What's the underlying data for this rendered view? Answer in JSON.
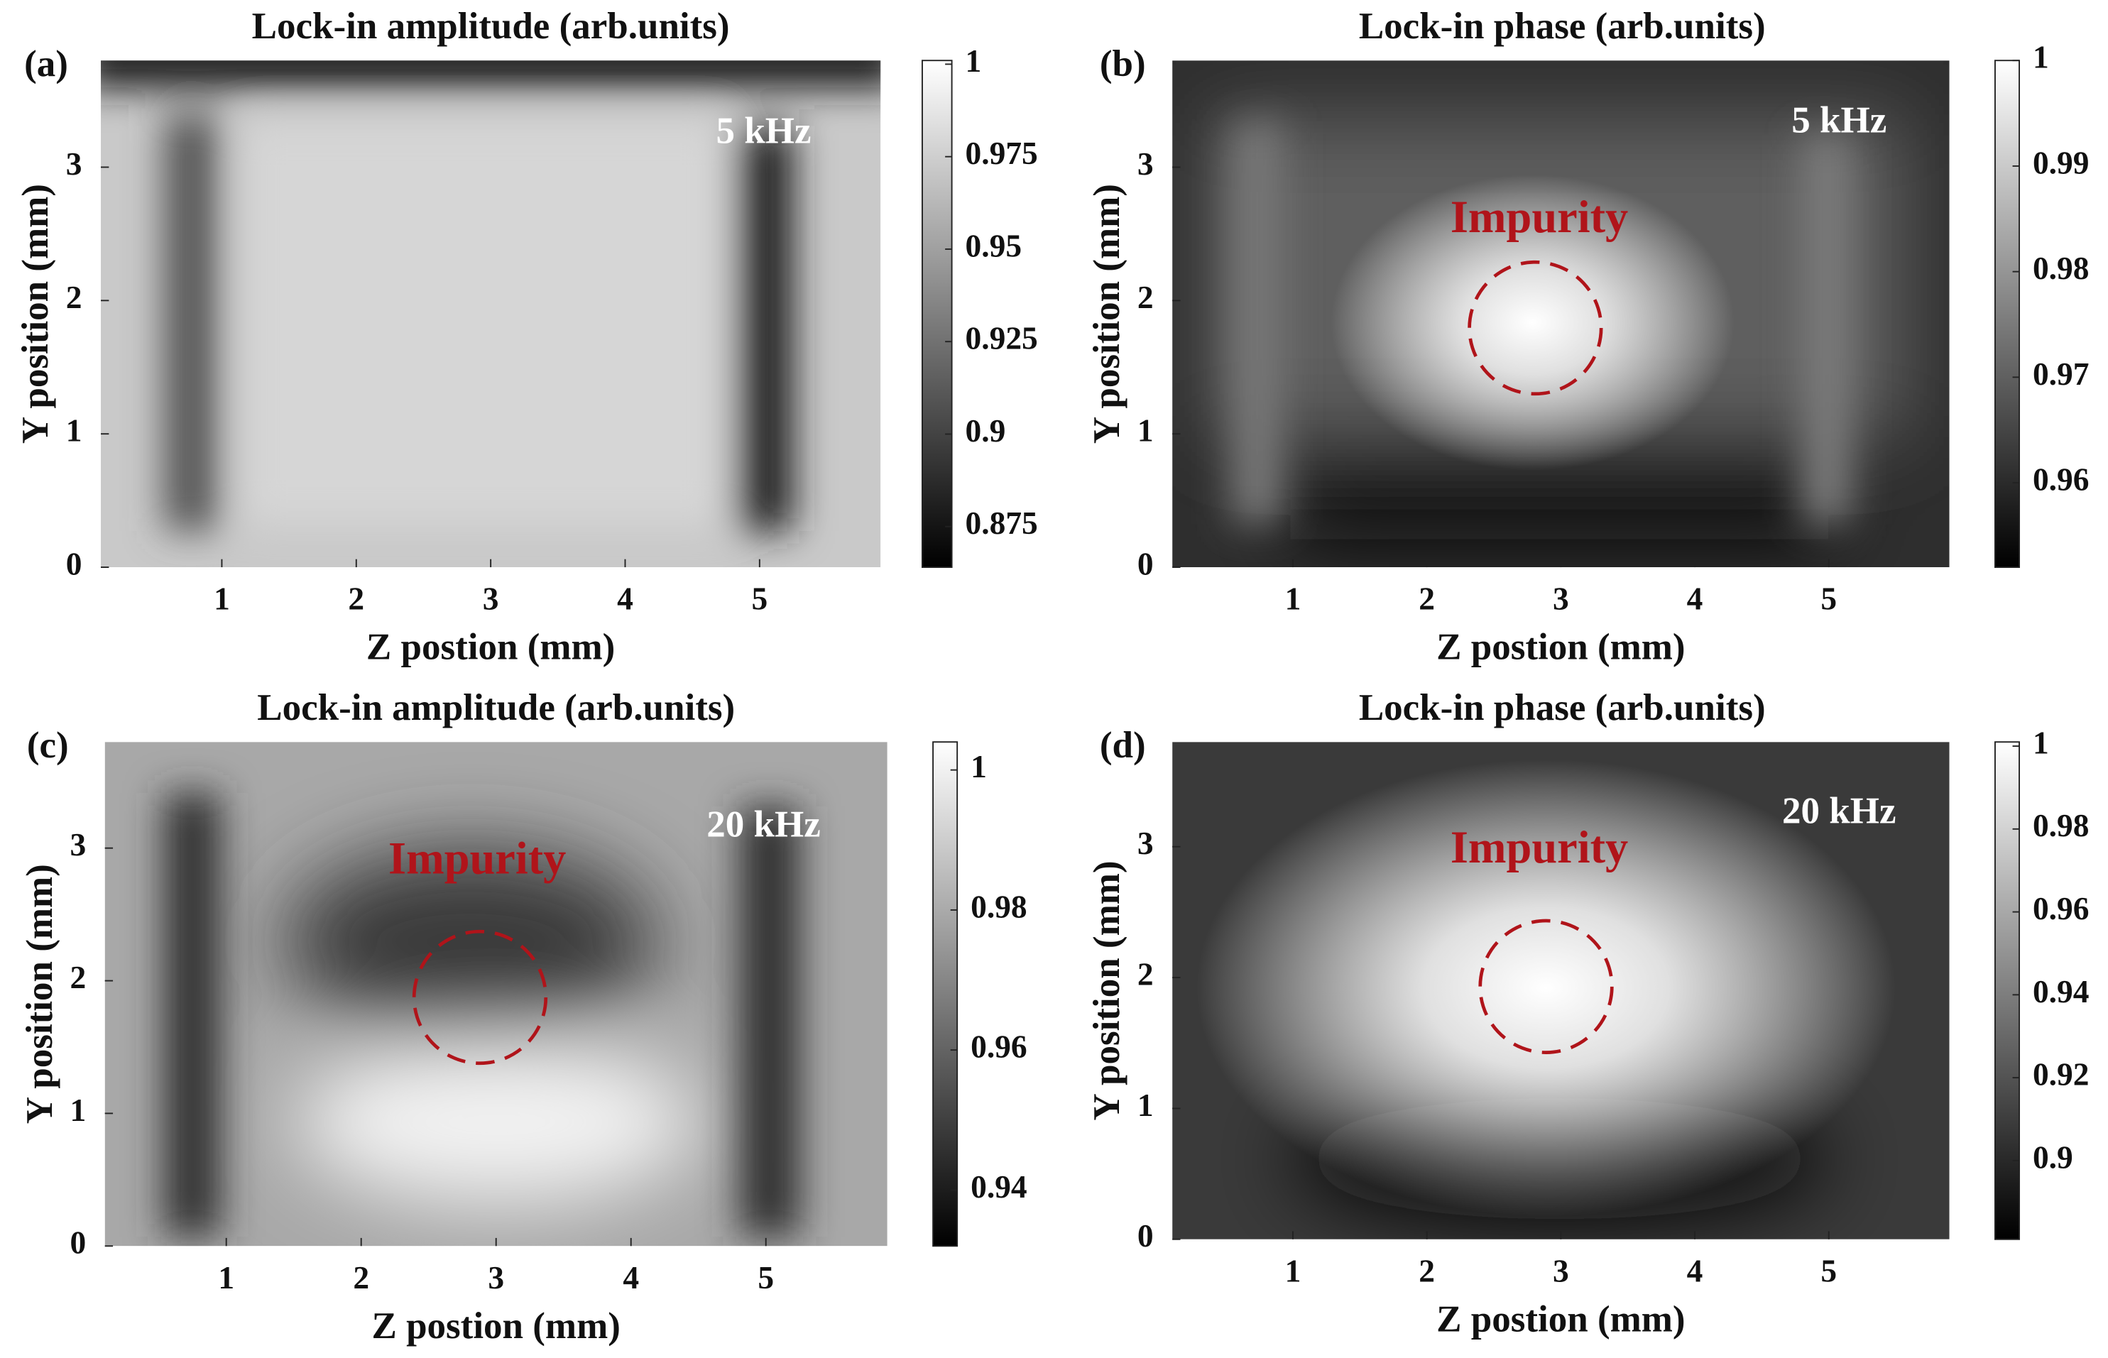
{
  "chart_data": [
    {
      "type": "heatmap",
      "panel_label": "(a)",
      "title": "Lock-in amplitude (arb.units)",
      "xlabel": "Z postion (mm)",
      "ylabel": "Y position (mm)",
      "xlim": [
        0.1,
        5.9
      ],
      "ylim": [
        0,
        3.8
      ],
      "xticks": [
        1,
        2,
        3,
        4,
        5
      ],
      "yticks": [
        0,
        1,
        2,
        3
      ],
      "clim": [
        0.864,
        1.001
      ],
      "cticks": [
        0.875,
        0.9,
        0.925,
        0.95,
        0.975,
        1
      ],
      "frequency": "5 kHz"
    },
    {
      "type": "heatmap",
      "panel_label": "(b)",
      "title": "Lock-in phase (arb.units)",
      "xlabel": "Z postion (mm)",
      "ylabel": "Y position (mm)",
      "xlim": [
        0.1,
        5.9
      ],
      "ylim": [
        0,
        3.8
      ],
      "xticks": [
        1,
        2,
        3,
        4,
        5
      ],
      "yticks": [
        0,
        1,
        2,
        3
      ],
      "clim": [
        0.952,
        1.0
      ],
      "cticks": [
        0.96,
        0.97,
        0.98,
        0.99,
        1
      ],
      "frequency": "5 kHz",
      "annotation": "Impurity"
    },
    {
      "type": "heatmap",
      "panel_label": "(c)",
      "title": "Lock-in amplitude (arb.units)",
      "xlabel": "Z postion (mm)",
      "ylabel": "Y position (mm)",
      "xlim": [
        0.1,
        5.9
      ],
      "ylim": [
        0,
        3.8
      ],
      "xticks": [
        1,
        2,
        3,
        4,
        5
      ],
      "yticks": [
        0,
        1,
        2,
        3
      ],
      "clim": [
        0.932,
        1.004
      ],
      "cticks": [
        0.94,
        0.96,
        0.98,
        1
      ],
      "frequency": "20 kHz",
      "annotation": "Impurity"
    },
    {
      "type": "heatmap",
      "panel_label": "(d)",
      "title": "Lock-in phase (arb.units)",
      "xlabel": "Z postion (mm)",
      "ylabel": "Y position (mm)",
      "xlim": [
        0.1,
        5.9
      ],
      "ylim": [
        0,
        3.8
      ],
      "xticks": [
        1,
        2,
        3,
        4,
        5
      ],
      "yticks": [
        0,
        1,
        2,
        3
      ],
      "clim": [
        0.881,
        1.001
      ],
      "cticks": [
        0.9,
        0.92,
        0.94,
        0.96,
        0.98,
        1
      ],
      "frequency": "20 kHz",
      "annotation": "Impurity"
    }
  ]
}
